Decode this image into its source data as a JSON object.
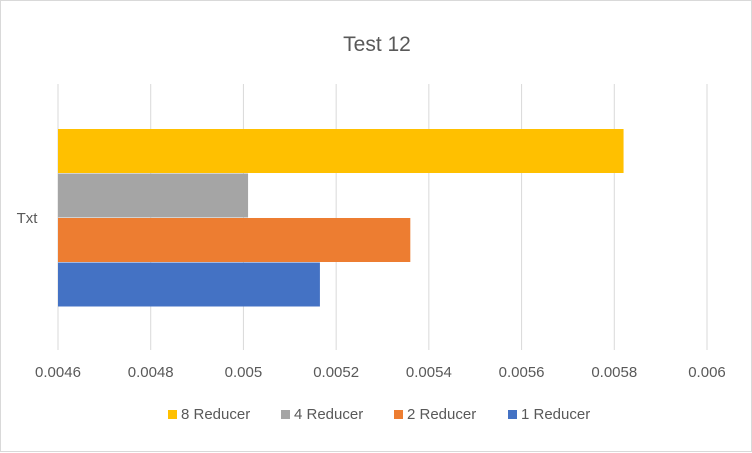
{
  "chart_data": {
    "type": "bar",
    "orientation": "horizontal",
    "title": "Test 12",
    "categories": [
      "Txt"
    ],
    "xlim": [
      0.0046,
      0.006
    ],
    "xticks": [
      "0.0046",
      "0.0048",
      "0.005",
      "0.0052",
      "0.0054",
      "0.0056",
      "0.0058",
      "0.006"
    ],
    "grid": true,
    "legend_position": "bottom",
    "series": [
      {
        "name": "8 Reducer",
        "values": [
          0.00582
        ],
        "color": "#FFC000"
      },
      {
        "name": "4 Reducer",
        "values": [
          0.00501
        ],
        "color": "#A5A5A5"
      },
      {
        "name": "2 Reducer",
        "values": [
          0.00536
        ],
        "color": "#ED7D31"
      },
      {
        "name": "1 Reducer",
        "values": [
          0.005165
        ],
        "color": "#4472C4"
      }
    ]
  }
}
